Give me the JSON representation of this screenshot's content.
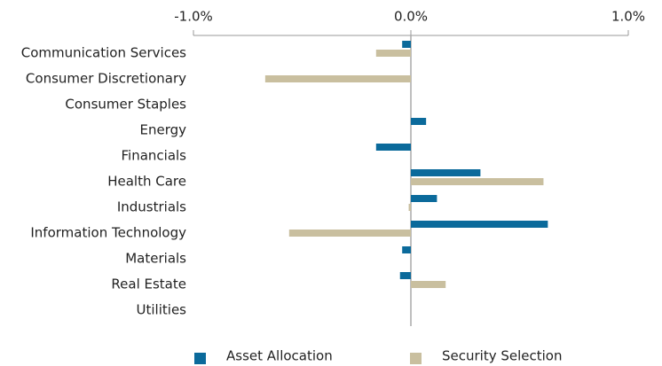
{
  "chart_data": {
    "type": "bar",
    "orientation": "horizontal",
    "categories": [
      "Communication Services",
      "Consumer Discretionary",
      "Consumer Staples",
      "Energy",
      "Financials",
      "Health Care",
      "Industrials",
      "Information Technology",
      "Materials",
      "Real Estate",
      "Utilities"
    ],
    "series": [
      {
        "name": "Asset Allocation",
        "color": "#0b6a9b",
        "values": [
          -0.04,
          0,
          0,
          0.07,
          -0.16,
          0.32,
          0.12,
          0.63,
          -0.04,
          -0.05,
          0
        ]
      },
      {
        "name": "Security Selection",
        "color": "#c9bf9f",
        "values": [
          -0.16,
          -0.67,
          0,
          0,
          0,
          0.61,
          -0.01,
          -0.56,
          0,
          0.16,
          0
        ]
      }
    ],
    "xlim": [
      -1,
      1
    ],
    "xticks": [
      {
        "value": -1,
        "label": "-1.0%"
      },
      {
        "value": 0,
        "label": "0.0%"
      },
      {
        "value": 1,
        "label": "1.0%"
      }
    ],
    "legend": "bottom"
  }
}
